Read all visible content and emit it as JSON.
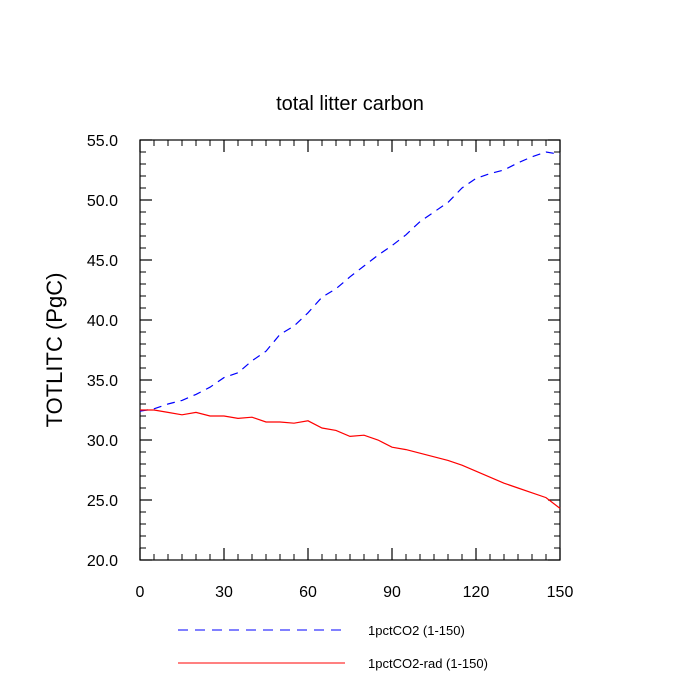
{
  "chart_data": {
    "type": "line",
    "title": "total litter carbon",
    "xlabel": "",
    "ylabel": "TOTLITC  (PgC)",
    "xlim": [
      0,
      150
    ],
    "ylim": [
      20,
      55
    ],
    "x_ticks": [
      0,
      30,
      60,
      90,
      120,
      150
    ],
    "x_tick_labels": [
      "0",
      "30",
      "60",
      "90",
      "120",
      "150"
    ],
    "y_ticks": [
      20,
      25,
      30,
      35,
      40,
      45,
      50,
      55
    ],
    "y_tick_labels": [
      "20.0",
      "25.0",
      "30.0",
      "35.0",
      "40.0",
      "45.0",
      "50.0",
      "55.0"
    ],
    "grid": false,
    "legend_position": "bottom",
    "series": [
      {
        "name": "1pctCO2 (1-150)",
        "color": "#0000ff",
        "style": "dashed",
        "x": [
          0,
          5,
          10,
          15,
          20,
          25,
          30,
          35,
          40,
          45,
          50,
          55,
          60,
          65,
          70,
          75,
          80,
          85,
          90,
          95,
          100,
          105,
          110,
          115,
          120,
          125,
          130,
          135,
          140,
          145,
          150
        ],
        "y": [
          32.4,
          32.6,
          33.0,
          33.3,
          33.8,
          34.4,
          35.2,
          35.6,
          36.6,
          37.4,
          38.8,
          39.5,
          40.6,
          41.9,
          42.6,
          43.6,
          44.5,
          45.4,
          46.2,
          47.1,
          48.2,
          49.0,
          49.8,
          51.0,
          51.8,
          52.2,
          52.5,
          53.1,
          53.6,
          54.0,
          53.8
        ]
      },
      {
        "name": "1pctCO2-rad (1-150)",
        "color": "#ff0000",
        "style": "solid",
        "x": [
          0,
          5,
          10,
          15,
          20,
          25,
          30,
          35,
          40,
          45,
          50,
          55,
          60,
          65,
          70,
          75,
          80,
          85,
          90,
          95,
          100,
          105,
          110,
          115,
          120,
          125,
          130,
          135,
          140,
          145,
          150
        ],
        "y": [
          32.5,
          32.5,
          32.3,
          32.1,
          32.3,
          32.0,
          32.0,
          31.8,
          31.9,
          31.5,
          31.5,
          31.4,
          31.6,
          31.0,
          30.8,
          30.3,
          30.4,
          30.0,
          29.4,
          29.2,
          28.9,
          28.6,
          28.3,
          27.9,
          27.4,
          26.9,
          26.4,
          26.0,
          25.6,
          25.2,
          24.3
        ]
      }
    ]
  }
}
